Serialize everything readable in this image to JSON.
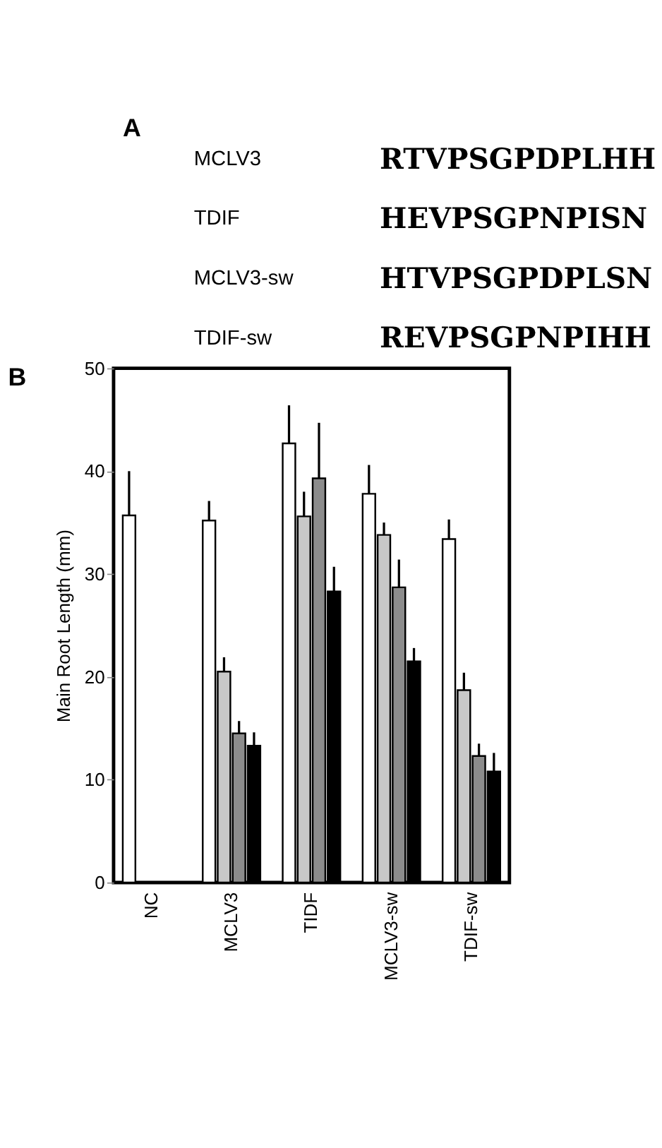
{
  "chart_data": {
    "type": "bar",
    "ylabel": "Main Root Length (mm)",
    "categories": [
      "NC",
      "MCLV3",
      "TIDF",
      "MCLV3-sw",
      "TDIF-sw"
    ],
    "series": [
      {
        "color": "#ffffff",
        "values": [
          35.7,
          35.2,
          42.7,
          37.8,
          33.4
        ],
        "errors": [
          [
            35.7,
            40.0
          ],
          [
            35.2,
            37.1
          ],
          [
            42.7,
            46.4
          ],
          [
            37.8,
            40.6
          ],
          [
            33.4,
            35.3
          ]
        ]
      },
      {
        "color": "#c8c8c8",
        "values": [
          null,
          20.5,
          35.6,
          33.8,
          18.7
        ],
        "errors": [
          null,
          [
            20.5,
            21.9
          ],
          [
            35.6,
            38.0
          ],
          [
            33.8,
            35.0
          ],
          [
            18.7,
            20.4
          ]
        ]
      },
      {
        "color": "#8c8c8c",
        "values": [
          null,
          14.5,
          39.3,
          28.7,
          12.3
        ],
        "errors": [
          null,
          [
            14.5,
            15.7
          ],
          [
            39.3,
            44.7
          ],
          [
            28.7,
            31.4
          ],
          [
            12.3,
            13.5
          ]
        ]
      },
      {
        "color": "#000000",
        "values": [
          null,
          13.3,
          28.3,
          21.5,
          10.8
        ],
        "errors": [
          null,
          [
            13.3,
            14.6
          ],
          [
            28.3,
            30.7
          ],
          [
            21.5,
            22.8
          ],
          [
            10.8,
            12.6
          ]
        ]
      }
    ],
    "ylim": [
      0,
      50
    ],
    "yticks": [
      0,
      10,
      20,
      30,
      40,
      50
    ],
    "grid": false,
    "legend": false,
    "annotations": [
      "A",
      "MCLV3",
      "RTVPSGPDPLHH",
      "TDIF",
      "HEVPSGPNPISN",
      "MCLV3-sw",
      "HTVPSGPDPLSN",
      "TDIF-sw",
      "REVPSGPNPIHH",
      "B"
    ]
  }
}
